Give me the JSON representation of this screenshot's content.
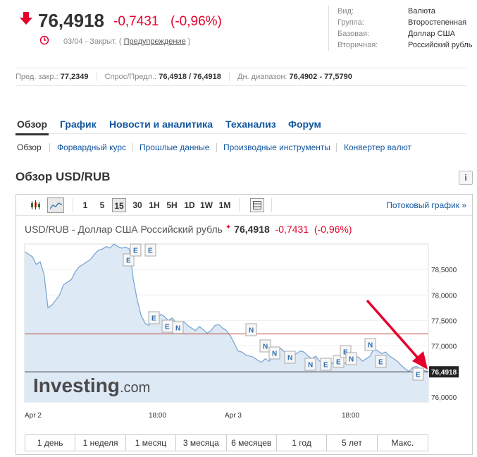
{
  "quote": {
    "price": "76,4918",
    "change": "-0,7431",
    "change_pct": "(-0,96%)",
    "date": "03/04",
    "status": " - Закрыт. (",
    "warning_link": "Предупреждение",
    "status_close": ")"
  },
  "info": {
    "rows": [
      {
        "key": "Вид:",
        "value": "Валюта"
      },
      {
        "key": "Группа:",
        "value": "Второстепенная"
      },
      {
        "key": "Базовая:",
        "value": "Доллар США"
      },
      {
        "key": "Вторичная:",
        "value": "Российский рубль"
      }
    ]
  },
  "stats": {
    "prev_close_label": "Пред. закр.:",
    "prev_close": "77,2349",
    "bid_ask_label": "Спрос/Предл.:",
    "bid_ask": "76,4918 / 76,4918",
    "day_range_label": "Дн. диапазон:",
    "day_range": "76,4902 - 77,5790"
  },
  "tabs": [
    "Обзор",
    "График",
    "Новости и аналитика",
    "Теханализ",
    "Форум"
  ],
  "subtabs": [
    "Обзор",
    "Форвардный курс",
    "Прошлые данные",
    "Производные инструменты",
    "Конвертер валют"
  ],
  "section_title": "Обзор USD/RUB",
  "toolbar": {
    "intervals": [
      "1",
      "5",
      "15",
      "30",
      "1H",
      "5H",
      "1D",
      "1W",
      "1M"
    ],
    "active_interval": "15",
    "stream_label": "Потоковый график »"
  },
  "chart_header": {
    "name": "USD/RUB - Доллар США Российский рубль",
    "price": "76,4918",
    "change": "-0,7431",
    "change_pct": "(-0,96%)"
  },
  "chart_data": {
    "type": "area",
    "x_labels": [
      "Apr 2",
      "18:00",
      "Apr 3",
      "18:00"
    ],
    "y_ticks": [
      "78,5000",
      "78,0000",
      "77,5000",
      "77,0000",
      "76,0000"
    ],
    "y_range": [
      75.9,
      79.0
    ],
    "current_value": 76.4918,
    "current_label": "76,4918",
    "prev_close": 77.2349,
    "series": [
      78.85,
      78.8,
      78.75,
      78.6,
      78.65,
      78.4,
      77.75,
      77.8,
      77.9,
      78.0,
      78.2,
      78.25,
      78.3,
      78.45,
      78.55,
      78.6,
      78.65,
      78.7,
      78.8,
      78.88,
      78.9,
      78.95,
      78.92,
      79.0,
      78.95,
      78.92,
      78.94,
      78.9,
      78.3,
      77.9,
      77.6,
      77.45,
      77.4,
      77.55,
      77.5,
      77.62,
      77.58,
      77.5,
      77.55,
      77.45,
      77.42,
      77.48,
      77.4,
      77.35,
      77.3,
      77.38,
      77.32,
      77.25,
      77.3,
      77.4,
      77.42,
      77.35,
      77.3,
      77.2,
      77.05,
      76.9,
      76.88,
      76.82,
      76.8,
      76.78,
      76.72,
      76.68,
      76.75,
      76.7,
      76.85,
      76.9,
      76.95,
      76.88,
      76.8,
      76.78,
      76.85,
      76.9,
      76.88,
      76.8,
      76.75,
      76.8,
      76.7,
      76.72,
      76.6,
      76.65,
      76.72,
      76.7,
      76.68,
      76.65,
      76.72,
      76.8,
      76.78,
      76.7,
      76.75,
      76.8,
      76.95,
      76.9,
      76.85,
      76.88,
      76.8,
      76.75,
      76.7,
      76.62,
      76.55,
      76.5,
      76.58,
      76.6,
      76.55,
      76.52,
      76.49
    ],
    "events": [
      "E",
      "E",
      "E",
      "E",
      "E",
      "N",
      "N",
      "N",
      "N",
      "N",
      "N",
      "E",
      "E",
      "E",
      "N",
      "N",
      "E",
      "E"
    ]
  },
  "ranges": [
    "1 день",
    "1 неделя",
    "1 месяц",
    "3 месяца",
    "6 месяцев",
    "1 год",
    "5 лет",
    "Макс."
  ],
  "colors": {
    "down": "#e4002b",
    "link": "#1256a0",
    "area": "#dde9f5",
    "line": "#7ea7d3"
  }
}
